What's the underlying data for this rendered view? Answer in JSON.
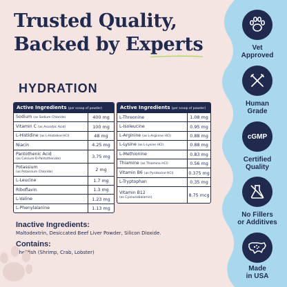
{
  "headline": {
    "line1": "Trusted Quality,",
    "line2": "Backed by Experts"
  },
  "section_title": "HYDRATION",
  "left_table": {
    "header": "Active Ingredients",
    "header_sub": "(per scoop of powder)",
    "rows": [
      {
        "name": "Sodium",
        "sub": "(as Sodium Chloride)",
        "value": "400 mg"
      },
      {
        "name": "Vitamin C",
        "sub": "(as Ascorbic Acid)",
        "value": "100 mg"
      },
      {
        "name": "L-Histidine",
        "sub": "(as L-Histidine HCl)",
        "value": "48 mg"
      },
      {
        "name": "Niacin",
        "sub": "",
        "value": "4.25 mg"
      },
      {
        "name": "Pantothenic Acid",
        "sub": "(as Calcium-D-Pantothenate)",
        "value": "3.75 mg"
      },
      {
        "name": "Potassium",
        "sub": "(as Potassium Chloride)",
        "value": "2 mg"
      },
      {
        "name": "L-Leucine",
        "sub": "",
        "value": "1.7 mg"
      },
      {
        "name": "Riboflavin",
        "sub": "",
        "value": "1.3 mg"
      },
      {
        "name": "L-Valine",
        "sub": "",
        "value": "1.23 mg"
      },
      {
        "name": "L-Phenylalanine",
        "sub": "",
        "value": "1.13 mg"
      }
    ]
  },
  "right_table": {
    "header": "Active Ingredients",
    "header_sub": "(per scoop of powder)",
    "rows": [
      {
        "name": "L-Threonine",
        "sub": "",
        "value": "1.08 mg"
      },
      {
        "name": "L-Isoleucine",
        "sub": "",
        "value": "0.95 mg"
      },
      {
        "name": "L-Arginine",
        "sub": "(as L-Arginine HCl)",
        "value": "0.88 mg"
      },
      {
        "name": "L-Lysine",
        "sub": "(as L-Lysine HCl)",
        "value": "0.88 mg"
      },
      {
        "name": "L-Methionine",
        "sub": "",
        "value": "0.83 mg"
      },
      {
        "name": "Thiamine",
        "sub": "(as Thiamine HCl)",
        "value": "0.56 mg"
      },
      {
        "name": "Vitamin B6",
        "sub": "(as Pyridoxine HCl)",
        "value": "0.375 mg"
      },
      {
        "name": "L-Tryptophan",
        "sub": "",
        "value": "0.35 mg"
      },
      {
        "name": "Vitamin B12",
        "sub": "(as Cyanocobalamin)",
        "value": "8.75 mcg"
      }
    ]
  },
  "inactive": {
    "heading": "Inactive Ingredients:",
    "text": "Maltodextrin, Desiccated Beef Liver Powder, Silicon Dioxide."
  },
  "contains": {
    "heading": "Contains:",
    "text": "Shellfish (Shrimp, Crab, Lobster)"
  },
  "badges": [
    {
      "icon": "paw-icon",
      "label1": "Vet",
      "label2": "Approved"
    },
    {
      "icon": "fork-knife-icon",
      "label1": "Human",
      "label2": "Grade"
    },
    {
      "icon": "cgmp-text",
      "text": "cGMP",
      "label1": "Certified",
      "label2": "Quality"
    },
    {
      "icon": "flask-icon",
      "label1": "No Fillers",
      "label2": "or Additives"
    },
    {
      "icon": "usa-map-icon",
      "label1": "Made",
      "label2": "in USA"
    }
  ],
  "colors": {
    "navy": "#1f2a4e",
    "pink_bg": "#f4e4e2",
    "light_blue": "#a9d8ee",
    "green_accent": "#b8d96a"
  }
}
